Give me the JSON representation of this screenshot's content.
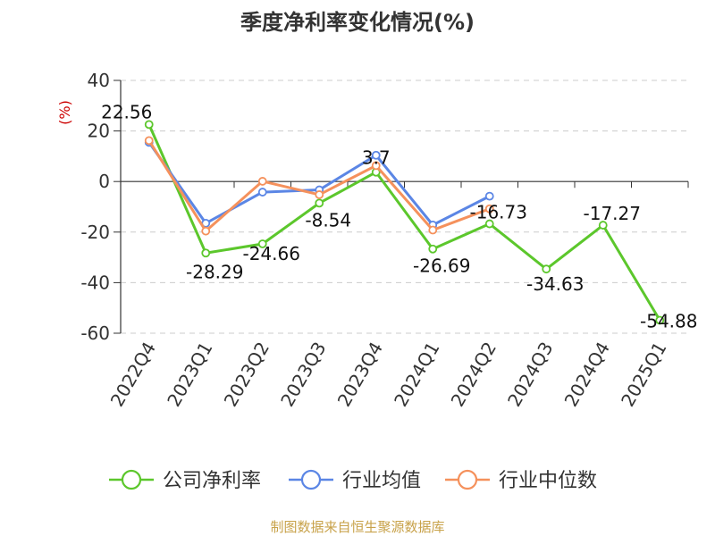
{
  "chart_data": {
    "type": "line",
    "title": "季度净利率变化情况(%)",
    "ylabel": "(%)",
    "xlabel": "",
    "ylim": [
      -60,
      40
    ],
    "yticks": [
      40,
      20,
      0,
      -20,
      -40,
      -60
    ],
    "categories": [
      "2022Q4",
      "2023Q1",
      "2023Q2",
      "2023Q3",
      "2023Q4",
      "2024Q1",
      "2024Q2",
      "2024Q3",
      "2024Q4",
      "2025Q1"
    ],
    "grid": true,
    "legend_position": "bottom",
    "series": [
      {
        "name": "公司净利率",
        "color": "#5cc72c",
        "values": [
          22.56,
          -28.29,
          -24.66,
          -8.54,
          3.7,
          -26.69,
          -16.73,
          -34.63,
          -17.27,
          -54.88
        ],
        "labels": [
          "22.56",
          "-28.29",
          "-24.66",
          "-8.54",
          "3.7",
          "-26.69",
          "-16.73",
          "-34.63",
          "-17.27",
          "-54.88"
        ]
      },
      {
        "name": "行业均值",
        "color": "#5b86e5",
        "values": [
          15.5,
          -16.5,
          -4.2,
          -3.3,
          10.4,
          -17.2,
          -5.8,
          null,
          null,
          null
        ]
      },
      {
        "name": "行业中位数",
        "color": "#f5915c",
        "values": [
          16.2,
          -19.6,
          0.1,
          -5.2,
          6.3,
          -19.2,
          -10.8,
          null,
          null,
          null
        ]
      }
    ]
  },
  "source": "制图数据来自恒生聚源数据库"
}
